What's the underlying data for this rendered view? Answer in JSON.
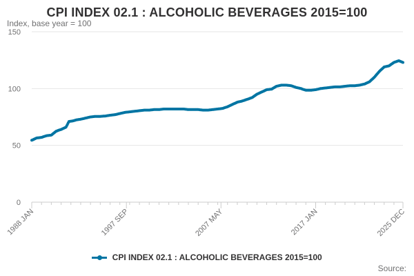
{
  "title": "CPI INDEX 02.1 : ALCOHOLIC BEVERAGES 2015=100",
  "subtitle": "Index, base year = 100",
  "source": "Source:",
  "colors": {
    "series": "#0075a3",
    "grid": "#e6e6e6",
    "axis": "#cccccc",
    "text": "#707071"
  },
  "chart_data": {
    "type": "line",
    "title": "CPI INDEX 02.1 : ALCOHOLIC BEVERAGES 2015=100",
    "ylabel": "Index, base year = 100",
    "ylim": [
      0,
      150
    ],
    "yticks": [
      0,
      50,
      100,
      150
    ],
    "x_range": [
      "1988 JAN",
      "2025 DEC"
    ],
    "x_tick_labels": [
      {
        "label": "1988 JAN",
        "year": 1988.0
      },
      {
        "label": "1997 SEP",
        "year": 1997.67
      },
      {
        "label": "2007 MAY",
        "year": 2007.33
      },
      {
        "label": "2017 JAN",
        "year": 2017.0
      },
      {
        "label": "2025 DEC",
        "year": 2025.92
      }
    ],
    "grid": true,
    "legend_position": "bottom",
    "series": [
      {
        "name": "CPI INDEX 02.1 : ALCOHOLIC BEVERAGES 2015=100",
        "points": [
          [
            1988.0,
            54.5
          ],
          [
            1988.5,
            56.5
          ],
          [
            1989.0,
            57.0
          ],
          [
            1989.5,
            58.5
          ],
          [
            1990.0,
            59.0
          ],
          [
            1990.5,
            62.5
          ],
          [
            1991.0,
            64.0
          ],
          [
            1991.5,
            66.0
          ],
          [
            1991.8,
            71.0
          ],
          [
            1992.2,
            71.5
          ],
          [
            1992.6,
            72.5
          ],
          [
            1993.0,
            73.0
          ],
          [
            1993.5,
            74.0
          ],
          [
            1994.0,
            75.0
          ],
          [
            1994.5,
            75.5
          ],
          [
            1995.0,
            75.5
          ],
          [
            1995.5,
            75.8
          ],
          [
            1996.0,
            76.5
          ],
          [
            1996.5,
            77.0
          ],
          [
            1997.0,
            78.0
          ],
          [
            1997.5,
            79.0
          ],
          [
            1998.0,
            79.5
          ],
          [
            1998.5,
            80.0
          ],
          [
            1999.0,
            80.5
          ],
          [
            1999.5,
            81.0
          ],
          [
            2000.0,
            81.0
          ],
          [
            2000.5,
            81.5
          ],
          [
            2001.0,
            81.5
          ],
          [
            2001.5,
            82.0
          ],
          [
            2002.0,
            82.0
          ],
          [
            2002.5,
            82.0
          ],
          [
            2003.0,
            82.0
          ],
          [
            2003.5,
            82.0
          ],
          [
            2004.0,
            81.5
          ],
          [
            2004.5,
            81.5
          ],
          [
            2005.0,
            81.5
          ],
          [
            2005.5,
            81.0
          ],
          [
            2006.0,
            81.0
          ],
          [
            2006.5,
            81.5
          ],
          [
            2007.0,
            82.0
          ],
          [
            2007.5,
            82.5
          ],
          [
            2008.0,
            84.0
          ],
          [
            2008.5,
            86.0
          ],
          [
            2009.0,
            88.0
          ],
          [
            2009.5,
            89.0
          ],
          [
            2010.0,
            90.5
          ],
          [
            2010.5,
            92.0
          ],
          [
            2011.0,
            95.0
          ],
          [
            2011.5,
            97.0
          ],
          [
            2012.0,
            99.0
          ],
          [
            2012.5,
            99.5
          ],
          [
            2013.0,
            102.0
          ],
          [
            2013.5,
            103.0
          ],
          [
            2014.0,
            103.0
          ],
          [
            2014.5,
            102.5
          ],
          [
            2015.0,
            101.0
          ],
          [
            2015.5,
            100.0
          ],
          [
            2016.0,
            98.5
          ],
          [
            2016.5,
            98.5
          ],
          [
            2017.0,
            99.0
          ],
          [
            2017.5,
            100.0
          ],
          [
            2018.0,
            100.5
          ],
          [
            2018.5,
            101.0
          ],
          [
            2019.0,
            101.5
          ],
          [
            2019.5,
            101.5
          ],
          [
            2020.0,
            102.0
          ],
          [
            2020.5,
            102.5
          ],
          [
            2021.0,
            102.5
          ],
          [
            2021.5,
            103.0
          ],
          [
            2022.0,
            104.0
          ],
          [
            2022.5,
            106.0
          ],
          [
            2023.0,
            110.0
          ],
          [
            2023.5,
            115.0
          ],
          [
            2024.0,
            119.0
          ],
          [
            2024.5,
            120.0
          ],
          [
            2025.0,
            123.0
          ],
          [
            2025.5,
            124.5
          ],
          [
            2025.92,
            123.0
          ]
        ]
      }
    ]
  }
}
